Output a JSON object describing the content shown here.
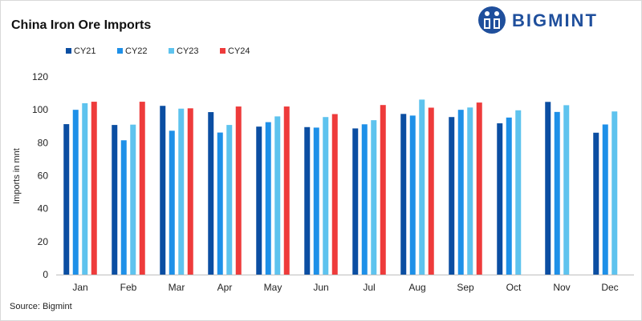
{
  "chart_data": {
    "type": "bar",
    "title": "China Iron Ore Imports",
    "ylabel": "Imports in mnt",
    "xlabel": "",
    "ylim": [
      0,
      120
    ],
    "yticks": [
      0,
      20,
      40,
      60,
      80,
      100,
      120
    ],
    "categories": [
      "Jan",
      "Feb",
      "Mar",
      "Apr",
      "May",
      "Jun",
      "Jul",
      "Aug",
      "Sep",
      "Oct",
      "Nov",
      "Dec"
    ],
    "series": [
      {
        "name": "CY21",
        "color": "#0b4ea2",
        "values": [
          91.3,
          90.8,
          102.4,
          98.6,
          89.8,
          89.5,
          88.7,
          97.5,
          95.6,
          91.8,
          104.8,
          86.1
        ]
      },
      {
        "name": "CY22",
        "color": "#1e90e8",
        "values": [
          100.0,
          81.5,
          87.3,
          86.2,
          92.5,
          89.2,
          91.2,
          96.5,
          100.0,
          95.3,
          98.7,
          91.1
        ]
      },
      {
        "name": "CY23",
        "color": "#5ec3ee",
        "values": [
          104.0,
          91.0,
          100.7,
          90.8,
          96.0,
          95.6,
          93.7,
          106.2,
          101.4,
          99.7,
          102.8,
          99.0
        ]
      },
      {
        "name": "CY24",
        "color": "#ee3b3b",
        "values": [
          104.9,
          104.9,
          100.9,
          102.0,
          102.0,
          97.4,
          102.9,
          101.3,
          104.4,
          null,
          null,
          null
        ]
      }
    ],
    "legend_position": "top-left",
    "grid": false,
    "source": "Source: Bigmint"
  },
  "brand": {
    "name": "BIGMINT",
    "color": "#1f4f9c"
  }
}
